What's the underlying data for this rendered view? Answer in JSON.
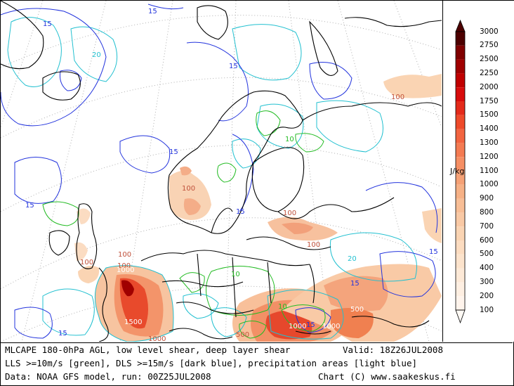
{
  "caption": {
    "title": "MLCAPE 180-0hPa AGL, low level shear, deep layer shear",
    "valid": "Valid: 18Z26JUL2008",
    "legend_line": "LLS >=10m/s [green], DLS >=15m/s [dark blue], precipitation areas [light blue]",
    "data_source": "Data: NOAA GFS model, run: 00Z25JUL2008",
    "credit": "Chart (C) www.saakeskus.fi"
  },
  "colorbar": {
    "unit": "J/kg",
    "levels": [
      "3000",
      "2750",
      "2500",
      "2250",
      "2000",
      "1750",
      "1500",
      "1400",
      "1300",
      "1200",
      "1100",
      "1000",
      "900",
      "800",
      "700",
      "600",
      "500",
      "400",
      "300",
      "200",
      "100"
    ],
    "colors": [
      "#4d0000",
      "#800000",
      "#a00000",
      "#c00000",
      "#d80c0c",
      "#e42a1a",
      "#ee4a2a",
      "#f26440",
      "#f47b52",
      "#f68f64",
      "#f5a176",
      "#f6b186",
      "#f8be96",
      "#f9c9a5",
      "#fad4b3",
      "#fcdcc0",
      "#fce3cc",
      "#fde9d7",
      "#feefe2",
      "#fff4ec",
      "#fffaf5"
    ]
  },
  "contour_labels": {
    "shear15": "15",
    "shear10": "10",
    "shear20": "20",
    "cape100": "100",
    "cape500": "500",
    "cape1000": "1000",
    "cape1500": "1500"
  },
  "colors": {
    "lls_green": "#22bb22",
    "dls_blue": "#2233dd",
    "precip_lightblue": "#22c0d0",
    "coast": "#000000",
    "grid": "#b0b0b0"
  }
}
